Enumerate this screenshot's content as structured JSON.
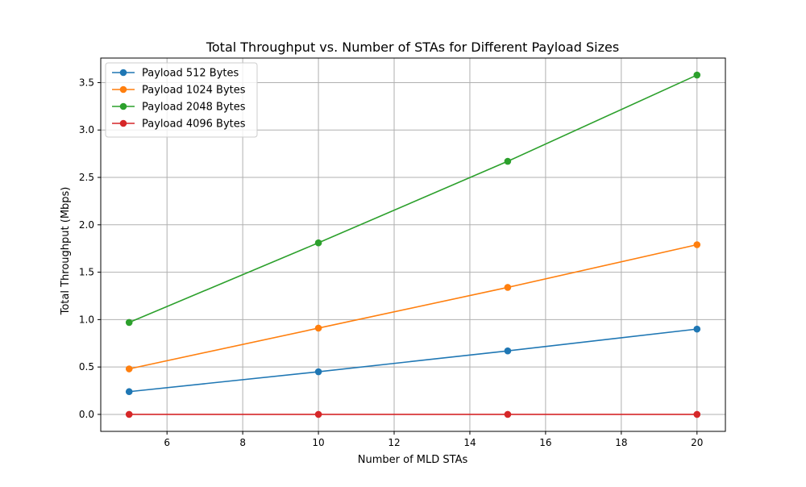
{
  "chart_data": {
    "type": "line",
    "title": "Total Throughput vs. Number of STAs for Different Payload Sizes",
    "xlabel": "Number of MLD STAs",
    "ylabel": "Total Throughput (Mbps)",
    "x": [
      5,
      10,
      15,
      20
    ],
    "xlim": [
      4.25,
      20.75
    ],
    "ylim": [
      -0.179,
      3.759
    ],
    "xticks": [
      6,
      8,
      10,
      12,
      14,
      16,
      18,
      20
    ],
    "yticks": [
      0.0,
      0.5,
      1.0,
      1.5,
      2.0,
      2.5,
      3.0,
      3.5
    ],
    "grid": true,
    "legend_position": "top-left",
    "series": [
      {
        "name": "Payload 512 Bytes",
        "color": "#1f77b4",
        "values": [
          0.24,
          0.45,
          0.67,
          0.9
        ]
      },
      {
        "name": "Payload 1024 Bytes",
        "color": "#ff7f0e",
        "values": [
          0.48,
          0.91,
          1.34,
          1.79
        ]
      },
      {
        "name": "Payload 2048 Bytes",
        "color": "#2ca02c",
        "values": [
          0.97,
          1.81,
          2.67,
          3.58
        ]
      },
      {
        "name": "Payload 4096 Bytes",
        "color": "#d62728",
        "values": [
          0.0,
          0.0,
          0.0,
          0.0
        ]
      }
    ]
  }
}
